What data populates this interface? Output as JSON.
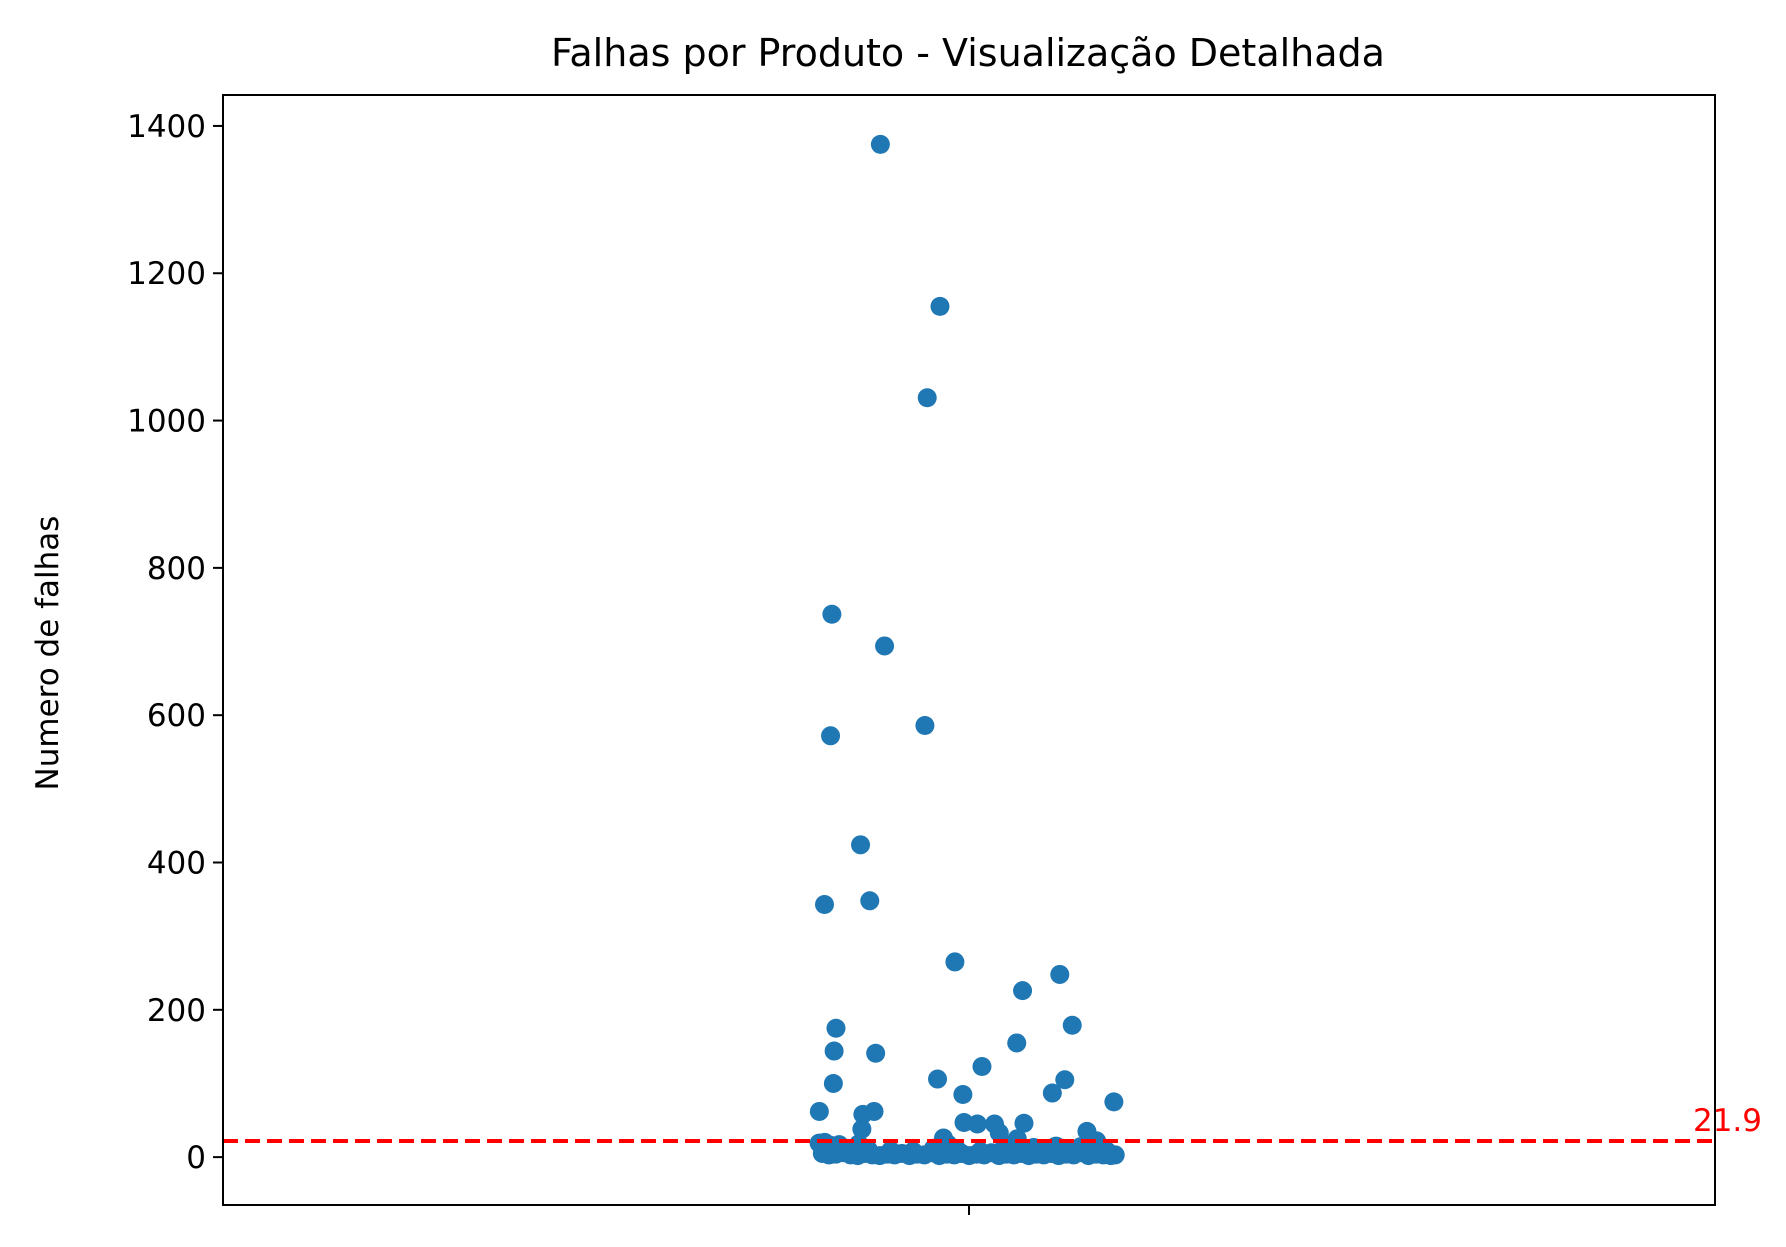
{
  "chart_data": {
    "type": "scatter",
    "title": "Falhas por Produto - Visualização Detalhada",
    "xlabel": "",
    "ylabel": "Numero de falhas",
    "ylim": [
      -65,
      1442
    ],
    "xlim": [
      -1,
      1
    ],
    "yticks": [
      0,
      200,
      400,
      600,
      800,
      1000,
      1200,
      1400
    ],
    "xticks": [
      0
    ],
    "xtick_labels": [
      ""
    ],
    "grid": false,
    "legend": "none",
    "point_color": "#1f77b4",
    "reference_line": {
      "value": 21.9,
      "label": "21.9",
      "color": "#ff0000",
      "style": "dashed"
    },
    "points": [
      {
        "x": -0.1188,
        "y": 1375
      },
      {
        "x": -0.0389,
        "y": 1155
      },
      {
        "x": -0.056,
        "y": 1031
      },
      {
        "x": -0.1838,
        "y": 737
      },
      {
        "x": -0.1132,
        "y": 694
      },
      {
        "x": -0.0591,
        "y": 586
      },
      {
        "x": -0.1856,
        "y": 572
      },
      {
        "x": -0.1454,
        "y": 424
      },
      {
        "x": -0.1937,
        "y": 343
      },
      {
        "x": -0.133,
        "y": 348
      },
      {
        "x": -0.0189,
        "y": 265
      },
      {
        "x": 0.1217,
        "y": 248
      },
      {
        "x": 0.0718,
        "y": 226
      },
      {
        "x": 0.1384,
        "y": 179
      },
      {
        "x": -0.1783,
        "y": 175
      },
      {
        "x": -0.1808,
        "y": 144
      },
      {
        "x": -0.1251,
        "y": 141
      },
      {
        "x": 0.064,
        "y": 155
      },
      {
        "x": 0.0174,
        "y": 123
      },
      {
        "x": -0.1818,
        "y": 100
      },
      {
        "x": -0.0422,
        "y": 106
      },
      {
        "x": 0.1284,
        "y": 105
      },
      {
        "x": -0.0082,
        "y": 85
      },
      {
        "x": 0.1117,
        "y": 87
      },
      {
        "x": 0.1942,
        "y": 75
      },
      {
        "x": -0.2006,
        "y": 62
      },
      {
        "x": -0.1423,
        "y": 58
      },
      {
        "x": -0.1273,
        "y": 62
      },
      {
        "x": -0.0067,
        "y": 47
      },
      {
        "x": 0.0112,
        "y": 45
      },
      {
        "x": 0.0342,
        "y": 45
      },
      {
        "x": 0.0737,
        "y": 46
      },
      {
        "x": -0.1436,
        "y": 38
      },
      {
        "x": 0.1581,
        "y": 35
      },
      {
        "x": 0.0406,
        "y": 33
      },
      {
        "x": -0.0342,
        "y": 26
      },
      {
        "x": 0.0647,
        "y": 25
      },
      {
        "x": 0.1711,
        "y": 22
      },
      {
        "x": -0.2009,
        "y": 19
      },
      {
        "x": -0.1934,
        "y": 20
      },
      {
        "x": -0.1854,
        "y": 16
      },
      {
        "x": -0.174,
        "y": 17
      },
      {
        "x": -0.1478,
        "y": 18
      },
      {
        "x": -0.0474,
        "y": 12
      },
      {
        "x": -0.0286,
        "y": 18
      },
      {
        "x": 0.0539,
        "y": 16
      },
      {
        "x": 0.0866,
        "y": 13
      },
      {
        "x": 0.1167,
        "y": 15
      },
      {
        "x": 0.1494,
        "y": 14
      },
      {
        "x": 0.1639,
        "y": 18
      },
      {
        "x": -0.1966,
        "y": 5
      },
      {
        "x": -0.1877,
        "y": 3
      },
      {
        "x": -0.1786,
        "y": 4
      },
      {
        "x": -0.1689,
        "y": 6
      },
      {
        "x": -0.1587,
        "y": 3
      },
      {
        "x": -0.1492,
        "y": 2
      },
      {
        "x": -0.1395,
        "y": 5
      },
      {
        "x": -0.1296,
        "y": 3
      },
      {
        "x": -0.1196,
        "y": 2
      },
      {
        "x": -0.1097,
        "y": 4
      },
      {
        "x": -0.0998,
        "y": 3
      },
      {
        "x": -0.0899,
        "y": 5
      },
      {
        "x": -0.0798,
        "y": 2
      },
      {
        "x": -0.0699,
        "y": 4
      },
      {
        "x": -0.0598,
        "y": 3
      },
      {
        "x": -0.0498,
        "y": 6
      },
      {
        "x": -0.0398,
        "y": 2
      },
      {
        "x": -0.0298,
        "y": 4
      },
      {
        "x": -0.0198,
        "y": 3
      },
      {
        "x": -0.0098,
        "y": 5
      },
      {
        "x": 0.0002,
        "y": 2
      },
      {
        "x": 0.0102,
        "y": 4
      },
      {
        "x": 0.0202,
        "y": 3
      },
      {
        "x": 0.0302,
        "y": 6
      },
      {
        "x": 0.0402,
        "y": 2
      },
      {
        "x": 0.0502,
        "y": 4
      },
      {
        "x": 0.0602,
        "y": 3
      },
      {
        "x": 0.0702,
        "y": 5
      },
      {
        "x": 0.0802,
        "y": 2
      },
      {
        "x": 0.0902,
        "y": 4
      },
      {
        "x": 0.1002,
        "y": 3
      },
      {
        "x": 0.1102,
        "y": 5
      },
      {
        "x": 0.1202,
        "y": 2
      },
      {
        "x": 0.1302,
        "y": 4
      },
      {
        "x": 0.1402,
        "y": 3
      },
      {
        "x": 0.1502,
        "y": 6
      },
      {
        "x": 0.1602,
        "y": 2
      },
      {
        "x": 0.1702,
        "y": 4
      },
      {
        "x": 0.1802,
        "y": 3
      },
      {
        "x": 0.1902,
        "y": 2
      },
      {
        "x": 0.196,
        "y": 3
      },
      {
        "x": -0.172,
        "y": 9
      },
      {
        "x": -0.155,
        "y": 8
      },
      {
        "x": -0.135,
        "y": 10
      },
      {
        "x": -0.105,
        "y": 9
      },
      {
        "x": -0.075,
        "y": 8
      },
      {
        "x": -0.045,
        "y": 10
      },
      {
        "x": -0.015,
        "y": 9
      },
      {
        "x": 0.015,
        "y": 8
      },
      {
        "x": 0.045,
        "y": 10
      },
      {
        "x": 0.075,
        "y": 9
      },
      {
        "x": 0.105,
        "y": 8
      },
      {
        "x": 0.135,
        "y": 10
      },
      {
        "x": 0.165,
        "y": 9
      },
      {
        "x": 0.185,
        "y": 8
      }
    ]
  }
}
